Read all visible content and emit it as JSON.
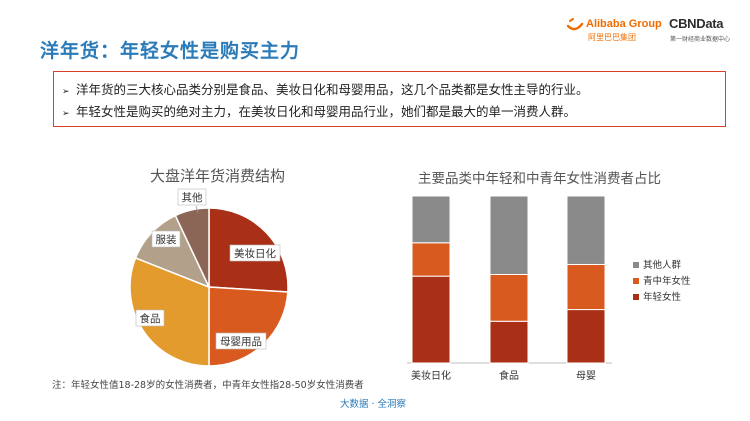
{
  "page_title": "洋年货：年轻女性是购买主力",
  "logos": {
    "alibaba": "Alibaba Group",
    "alibaba_sub": "阿里巴巴集团",
    "cbndata": "CBNData",
    "cbndata_sub": "第一财经商业数据中心"
  },
  "summary": [
    "洋年货的三大核心品类分别是食品、美妆日化和母婴用品，这几个品类都是女性主导的行业。",
    "年轻女性是购买的绝对主力，在美妆日化和母婴用品行业，她们都是最大的单一消费人群。"
  ],
  "footnote": "注：年轻女性值18-28岁的女性消费者，中青年女性指28-50岁女性消费者",
  "footer": "大数据 · 全洞察",
  "chart_data": [
    {
      "type": "pie",
      "title": "大盘洋年货消费结构",
      "slices": [
        {
          "label": "美妆日化",
          "value": 26
        },
        {
          "label": "母婴用品",
          "value": 24
        },
        {
          "label": "食品",
          "value": 31
        },
        {
          "label": "服装",
          "value": 12
        },
        {
          "label": "其他",
          "value": 7
        }
      ],
      "colors": [
        "#a93016",
        "#d95a1f",
        "#e39b2e",
        "#b3a08a",
        "#8b6656"
      ]
    },
    {
      "type": "bar",
      "stacked": true,
      "title": "主要品类中年轻和中青年女性消费者占比",
      "categories": [
        "美妆日化",
        "食品",
        "母婴"
      ],
      "series": [
        {
          "name": "年轻女性",
          "values": [
            52,
            25,
            32
          ]
        },
        {
          "name": "青中年女性",
          "values": [
            20,
            28,
            27
          ]
        },
        {
          "name": "其他人群",
          "values": [
            28,
            47,
            41
          ]
        }
      ],
      "colors": [
        "#a93016",
        "#d95a1f",
        "#8a8a8a"
      ],
      "ylim": [
        0,
        100
      ],
      "legend": "right"
    }
  ]
}
